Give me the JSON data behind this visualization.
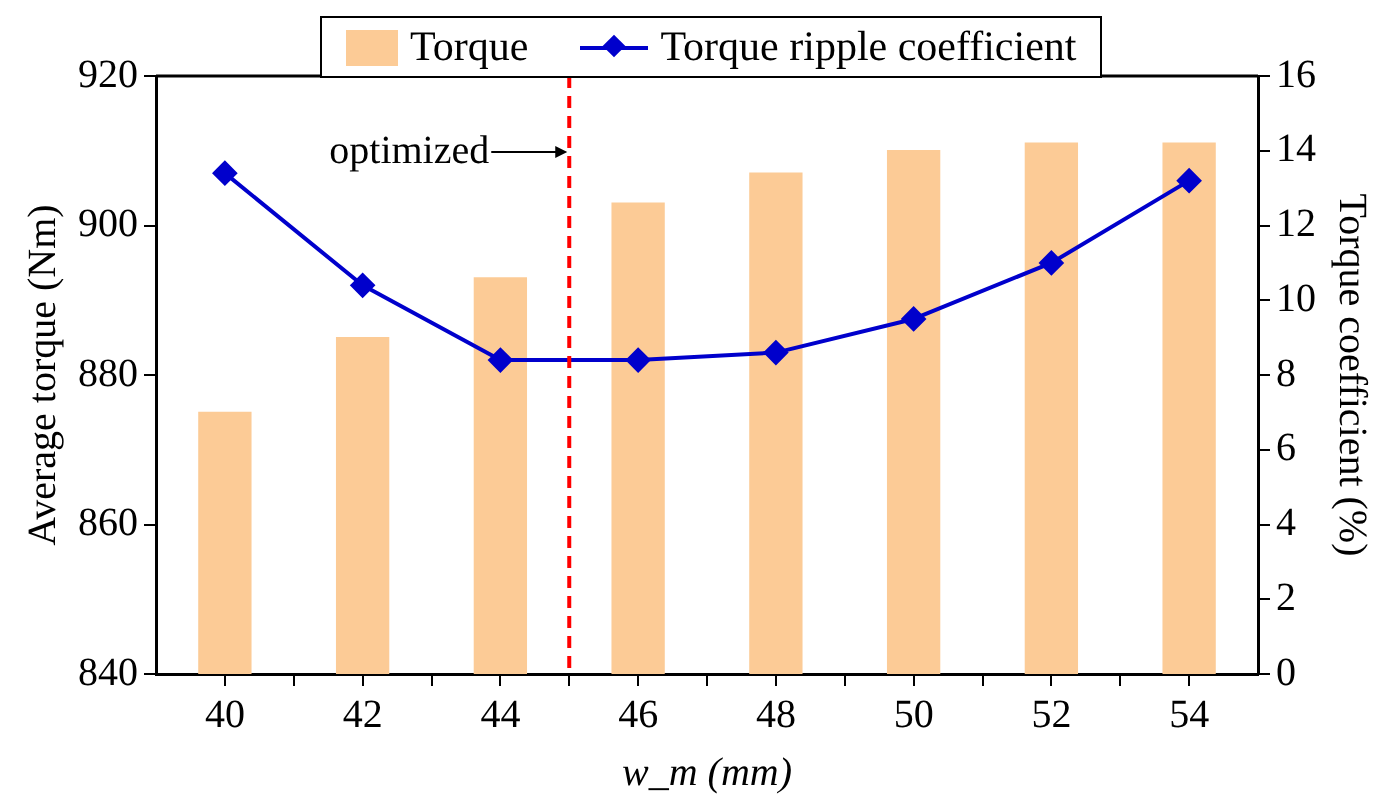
{
  "chart_data": {
    "type": "bar",
    "xlabel": "w_m (mm)",
    "ylabel": "Average torque (Nm)",
    "y2label": "Torque coefficient (%)",
    "x": [
      40,
      42,
      44,
      46,
      48,
      50,
      52,
      54
    ],
    "xlim": [
      39,
      55
    ],
    "xticks": [
      40,
      {
        "value": 41,
        "label": null
      },
      42,
      {
        "value": 43,
        "label": null
      },
      44,
      {
        "value": 45,
        "label": null
      },
      46,
      {
        "value": 47,
        "label": null
      },
      48,
      {
        "value": 49,
        "label": null
      },
      50,
      {
        "value": 51,
        "label": null
      },
      52,
      {
        "value": 53,
        "label": null
      },
      54
    ],
    "ylim": [
      840,
      920
    ],
    "yticks": [
      840,
      860,
      880,
      900,
      920
    ],
    "y2lim": [
      0,
      16
    ],
    "y2ticks": [
      0,
      2,
      4,
      6,
      8,
      10,
      12,
      14,
      16
    ],
    "series": [
      {
        "name": "Torque",
        "color": "#fccb96",
        "values": [
          875,
          885,
          893,
          903,
          907,
          910,
          911,
          911
        ]
      },
      {
        "name": "Torque ripple coefficient",
        "type": "line",
        "axis": "y2",
        "color": "#0000cc",
        "marker": "diamond",
        "values": [
          13.4,
          10.4,
          8.4,
          8.4,
          8.6,
          9.5,
          11.0,
          13.2
        ]
      }
    ],
    "ref_lines": [
      {
        "axis": "x",
        "value": 45,
        "label": "optimized",
        "color": "#ff0000",
        "line_style": "dashed"
      }
    ],
    "grid": false,
    "legend": "top"
  }
}
